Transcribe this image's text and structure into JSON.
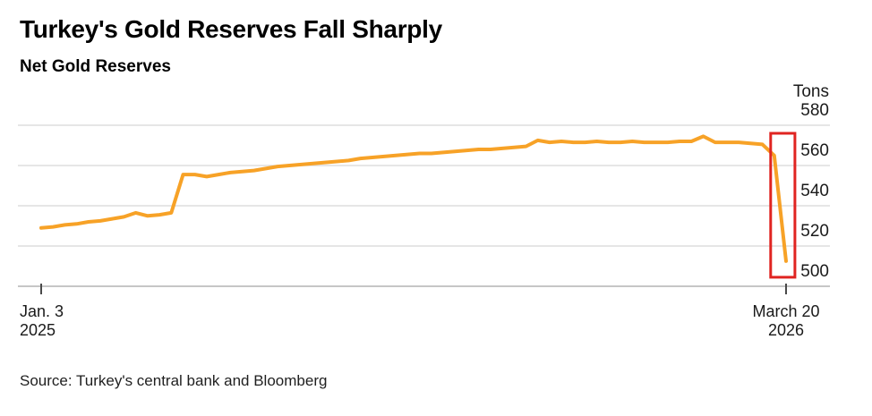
{
  "header": {
    "title": "Turkey's Gold Reserves Fall Sharply",
    "subtitle": "Net Gold Reserves"
  },
  "footer": {
    "source": "Source: Turkey's central bank and Bloomberg"
  },
  "chart_data": {
    "type": "line",
    "title": "Turkey's Gold Reserves Fall Sharply",
    "subtitle": "Net Gold Reserves",
    "unit_label": "Tons",
    "ylabel": "Tons",
    "ylim": [
      500,
      580
    ],
    "y_ticks": [
      580,
      560,
      540,
      520,
      500
    ],
    "grid": "horizontal",
    "legend": "none",
    "x_frequency": "weekly",
    "x_start_label": {
      "line1": "Jan. 3",
      "line2": "2025"
    },
    "x_end_label": {
      "line1": "March 20",
      "line2": "2026"
    },
    "series": [
      {
        "name": "Net Gold Reserves",
        "color": "#f7a227",
        "values": [
          529,
          529.5,
          530.5,
          531,
          532,
          532.5,
          533.5,
          534.5,
          536.5,
          535,
          535.5,
          536.5,
          555.5,
          555.5,
          554.5,
          555.5,
          556.5,
          557,
          557.5,
          558.5,
          559.5,
          560,
          560.5,
          561,
          561.5,
          562,
          562.5,
          563.5,
          564,
          564.5,
          565,
          565.5,
          566,
          566,
          566.5,
          567,
          567.5,
          568,
          568,
          568.5,
          569,
          569.5,
          572.5,
          571.5,
          572,
          571.5,
          571.5,
          572,
          571.5,
          571.5,
          572,
          571.5,
          571.5,
          571.5,
          572,
          572,
          574.5,
          571.5,
          571.5,
          571.5,
          571,
          570.5,
          565,
          512.5
        ]
      }
    ],
    "annotation_box": {
      "description": "red box highlighting final sharp drop",
      "week_start": 61.7,
      "week_end": 63.75,
      "value_top": 576,
      "value_bottom": 504.5,
      "color": "#e02421"
    },
    "colors": {
      "gridline": "#dedede",
      "baseline_axis": "#c6c6c6",
      "tick_mark": "#4a4a4a",
      "label_text": "#1a1a1a"
    }
  }
}
